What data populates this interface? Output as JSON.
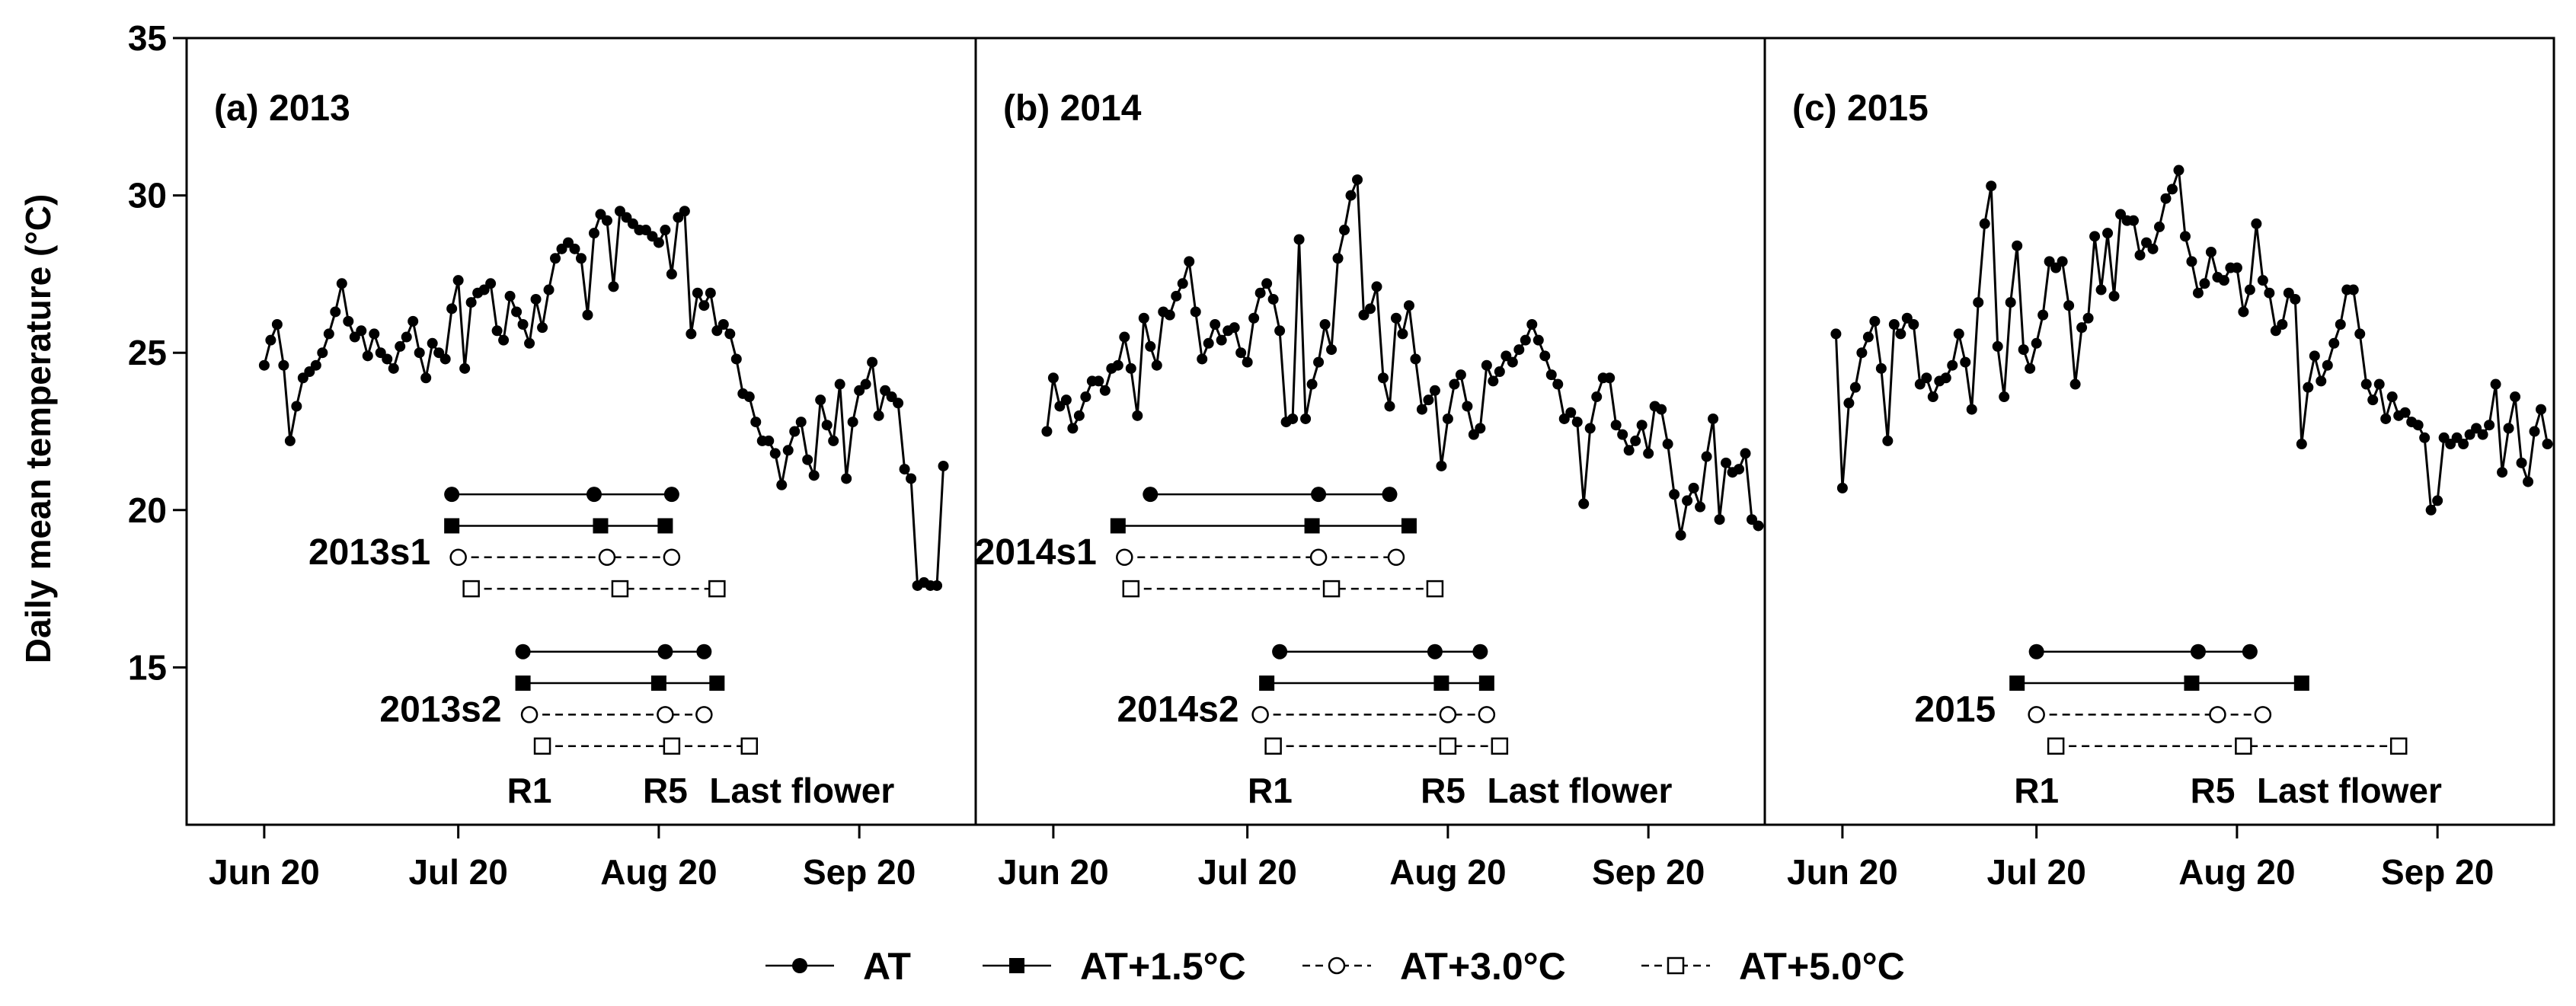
{
  "chart_data": {
    "type": "line",
    "ylabel": "Daily mean temperature (°C)",
    "ylim": [
      10,
      35
    ],
    "yticks": [
      15,
      20,
      25,
      30,
      35
    ],
    "x_units": "day of year",
    "x_range": [
      159,
      281
    ],
    "xticks": [
      {
        "label": "Jun 20",
        "doy": 171
      },
      {
        "label": "Jul 20",
        "doy": 201
      },
      {
        "label": "Aug 20",
        "doy": 232
      },
      {
        "label": "Sep 20",
        "doy": 263
      }
    ],
    "stage_labels": [
      "R1",
      "R5",
      "Last flower"
    ],
    "legend": [
      {
        "label": "AT",
        "marker": "filled-circle",
        "line": "solid"
      },
      {
        "label": "AT+1.5°C",
        "marker": "filled-square",
        "line": "solid"
      },
      {
        "label": "AT+3.0°C",
        "marker": "open-circle",
        "line": "dashed"
      },
      {
        "label": "AT+5.0°C",
        "marker": "open-square",
        "line": "dashed"
      }
    ],
    "panels": [
      {
        "title": "(a) 2013",
        "temperature": {
          "start_doy": 171,
          "values": [
            24.6,
            25.4,
            25.9,
            24.6,
            22.2,
            23.3,
            24.2,
            24.4,
            24.6,
            25.0,
            25.6,
            26.3,
            27.2,
            26.0,
            25.5,
            25.7,
            24.9,
            25.6,
            25.0,
            24.8,
            24.5,
            25.2,
            25.5,
            26.0,
            25.0,
            24.2,
            25.3,
            25.0,
            24.8,
            26.4,
            27.3,
            24.5,
            26.6,
            26.9,
            27.0,
            27.2,
            25.7,
            25.4,
            26.8,
            26.3,
            25.9,
            25.3,
            26.7,
            25.8,
            27.0,
            28.0,
            28.3,
            28.5,
            28.3,
            28.0,
            26.2,
            28.8,
            29.4,
            29.2,
            27.1,
            29.5,
            29.3,
            29.1,
            28.9,
            28.9,
            28.7,
            28.5,
            28.9,
            27.5,
            29.3,
            29.5,
            25.6,
            26.9,
            26.5,
            26.9,
            25.7,
            25.9,
            25.6,
            24.8,
            23.7,
            23.6,
            22.8,
            22.2,
            22.2,
            21.8,
            20.8,
            21.9,
            22.5,
            22.8,
            21.6,
            21.1,
            23.5,
            22.7,
            22.2,
            24.0,
            21.0,
            22.8,
            23.8,
            24.0,
            24.7,
            23.0,
            23.8,
            23.6,
            23.4,
            21.3,
            21.0,
            17.6,
            17.7,
            17.6,
            17.6,
            21.4
          ]
        },
        "sowings": [
          {
            "label": "2013s1",
            "rows": [
              {
                "treatment": "AT",
                "r1": 200,
                "r5": 222,
                "last_flower": 234
              },
              {
                "treatment": "AT+1.5°C",
                "r1": 200,
                "r5": 223,
                "last_flower": 233
              },
              {
                "treatment": "AT+3.0°C",
                "r1": 201,
                "r5": 224,
                "last_flower": 234
              },
              {
                "treatment": "AT+5.0°C",
                "r1": 203,
                "r5": 226,
                "last_flower": 241
              }
            ]
          },
          {
            "label": "2013s2",
            "rows": [
              {
                "treatment": "AT",
                "r1": 211,
                "r5": 233,
                "last_flower": 239
              },
              {
                "treatment": "AT+1.5°C",
                "r1": 211,
                "r5": 232,
                "last_flower": 241
              },
              {
                "treatment": "AT+3.0°C",
                "r1": 212,
                "r5": 233,
                "last_flower": 239
              },
              {
                "treatment": "AT+5.0°C",
                "r1": 214,
                "r5": 234,
                "last_flower": 246
              }
            ]
          }
        ]
      },
      {
        "title": "(b) 2014",
        "temperature": {
          "start_doy": 170,
          "values": [
            22.5,
            24.2,
            23.3,
            23.5,
            22.6,
            23.0,
            23.6,
            24.1,
            24.1,
            23.8,
            24.5,
            24.6,
            25.5,
            24.5,
            23.0,
            26.1,
            25.2,
            24.6,
            26.3,
            26.2,
            26.8,
            27.2,
            27.9,
            26.3,
            24.8,
            25.3,
            25.9,
            25.4,
            25.7,
            25.8,
            25.0,
            24.7,
            26.1,
            26.9,
            27.2,
            26.7,
            25.7,
            22.8,
            22.9,
            28.6,
            22.9,
            24.0,
            24.7,
            25.9,
            25.1,
            28.0,
            28.9,
            30.0,
            30.5,
            26.2,
            26.4,
            27.1,
            24.2,
            23.3,
            26.1,
            25.6,
            26.5,
            24.8,
            23.2,
            23.5,
            23.8,
            21.4,
            22.9,
            24.0,
            24.3,
            23.3,
            22.4,
            22.6,
            24.6,
            24.1,
            24.4,
            24.9,
            24.7,
            25.1,
            25.4,
            25.9,
            25.4,
            24.9,
            24.3,
            24.0,
            22.9,
            23.1,
            22.8,
            20.2,
            22.6,
            23.6,
            24.2,
            24.2,
            22.7,
            22.4,
            21.9,
            22.2,
            22.7,
            21.8,
            23.3,
            23.2,
            22.1,
            20.5,
            19.2,
            20.3,
            20.7,
            20.1,
            21.7,
            22.9,
            19.7,
            21.5,
            21.2,
            21.3,
            21.8,
            19.7,
            19.5
          ]
        },
        "sowings": [
          {
            "label": "2014s1",
            "rows": [
              {
                "treatment": "AT",
                "r1": 186,
                "r5": 212,
                "last_flower": 223
              },
              {
                "treatment": "AT+1.5°C",
                "r1": 181,
                "r5": 211,
                "last_flower": 226
              },
              {
                "treatment": "AT+3.0°C",
                "r1": 182,
                "r5": 212,
                "last_flower": 224
              },
              {
                "treatment": "AT+5.0°C",
                "r1": 183,
                "r5": 214,
                "last_flower": 230
              }
            ]
          },
          {
            "label": "2014s2",
            "rows": [
              {
                "treatment": "AT",
                "r1": 206,
                "r5": 230,
                "last_flower": 237
              },
              {
                "treatment": "AT+1.5°C",
                "r1": 204,
                "r5": 231,
                "last_flower": 238
              },
              {
                "treatment": "AT+3.0°C",
                "r1": 203,
                "r5": 232,
                "last_flower": 238
              },
              {
                "treatment": "AT+5.0°C",
                "r1": 205,
                "r5": 232,
                "last_flower": 240
              }
            ]
          }
        ]
      },
      {
        "title": "(c) 2015",
        "temperature": {
          "start_doy": 170,
          "values": [
            25.6,
            20.7,
            23.4,
            23.9,
            25.0,
            25.5,
            26.0,
            24.5,
            22.2,
            25.9,
            25.6,
            26.1,
            25.9,
            24.0,
            24.2,
            23.6,
            24.1,
            24.2,
            24.6,
            25.6,
            24.7,
            23.2,
            26.6,
            29.1,
            30.3,
            25.2,
            23.6,
            26.6,
            28.4,
            25.1,
            24.5,
            25.3,
            26.2,
            27.9,
            27.7,
            27.9,
            26.5,
            24.0,
            25.8,
            26.1,
            28.7,
            27.0,
            28.8,
            26.8,
            29.4,
            29.2,
            29.2,
            28.1,
            28.5,
            28.3,
            29.0,
            29.9,
            30.2,
            30.8,
            28.7,
            27.9,
            26.9,
            27.2,
            28.2,
            27.4,
            27.3,
            27.7,
            27.7,
            26.3,
            27.0,
            29.1,
            27.3,
            26.9,
            25.7,
            25.9,
            26.9,
            26.7,
            22.1,
            23.9,
            24.9,
            24.1,
            24.6,
            25.3,
            25.9,
            27.0,
            27.0,
            25.6,
            24.0,
            23.5,
            24.0,
            22.9,
            23.6,
            23.0,
            23.1,
            22.8,
            22.7,
            22.3,
            20.0,
            20.3,
            22.3,
            22.1,
            22.3,
            22.1,
            22.4,
            22.6,
            22.4,
            22.7,
            24.0,
            21.2,
            22.6,
            23.6,
            21.5,
            20.9,
            22.5,
            23.2,
            22.1
          ]
        },
        "sowings": [
          {
            "label": "2015",
            "rows": [
              {
                "treatment": "AT",
                "r1": 201,
                "r5": 226,
                "last_flower": 234
              },
              {
                "treatment": "AT+1.5°C",
                "r1": 198,
                "r5": 225,
                "last_flower": 242
              },
              {
                "treatment": "AT+3.0°C",
                "r1": 201,
                "r5": 229,
                "last_flower": 236
              },
              {
                "treatment": "AT+5.0°C",
                "r1": 204,
                "r5": 233,
                "last_flower": 257
              }
            ]
          }
        ]
      }
    ]
  }
}
